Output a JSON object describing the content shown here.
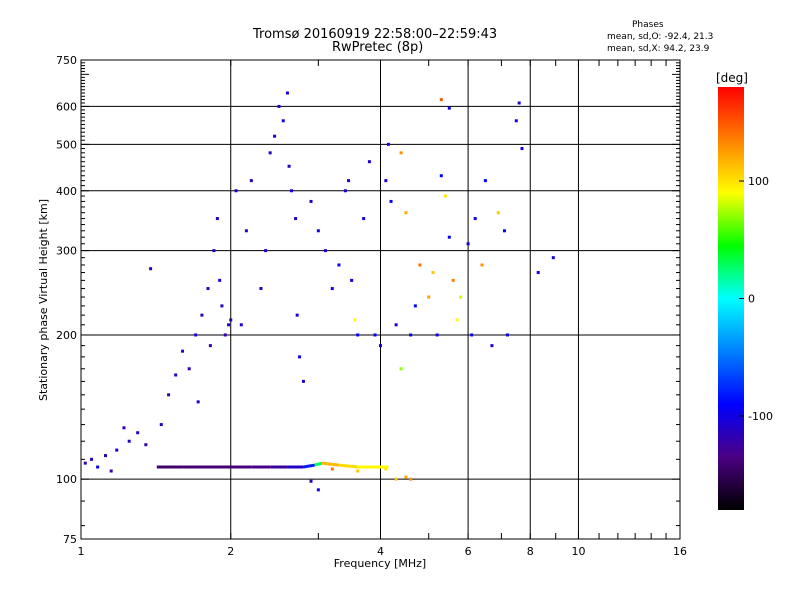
{
  "chart_data": {
    "type": "scatter",
    "title": "Tromsø 20160919 22:58:00–22:59:43",
    "subtitle": "RwPretec (8p)",
    "xlabel": "Frequency [MHz]",
    "ylabel": "Stationary phase Virtual Height [km]",
    "x_scale": "log",
    "y_scale": "log",
    "xlim": [
      1,
      16
    ],
    "ylim": [
      75,
      750
    ],
    "x_ticks": [
      1,
      2,
      4,
      6,
      8,
      10,
      16
    ],
    "y_ticks": [
      75,
      100,
      200,
      300,
      400,
      500,
      600,
      750
    ],
    "grid": true,
    "phase_stats": {
      "heading": "Phases",
      "o_mode": "mean, sd,O: -92.4, 21.3",
      "x_mode": "mean, sd,X:  94.2, 23.9"
    },
    "colorbar": {
      "unit": "[deg]",
      "range": [
        -180,
        180
      ],
      "ticks": [
        100,
        0,
        -100
      ],
      "colors": [
        "#000000",
        "#4b0082",
        "#0000ff",
        "#0080ff",
        "#00ffff",
        "#00ff00",
        "#ffff00",
        "#ff8000",
        "#ff0000"
      ]
    },
    "series": [
      {
        "points": [
          [
            1.02,
            108,
            -120
          ],
          [
            1.05,
            110,
            -110
          ],
          [
            1.08,
            106,
            -100
          ],
          [
            1.12,
            112,
            -115
          ],
          [
            1.15,
            104,
            -125
          ],
          [
            1.18,
            115,
            -105
          ],
          [
            1.22,
            128,
            -120
          ],
          [
            1.25,
            120,
            -110
          ],
          [
            1.3,
            125,
            -115
          ],
          [
            1.35,
            118,
            -120
          ],
          [
            1.38,
            275,
            -110
          ],
          [
            1.45,
            130,
            -115
          ],
          [
            1.5,
            150,
            -120
          ],
          [
            1.55,
            165,
            -110
          ],
          [
            1.6,
            185,
            -115
          ],
          [
            1.65,
            170,
            -120
          ],
          [
            1.7,
            200,
            -110
          ],
          [
            1.72,
            145,
            -105
          ],
          [
            1.75,
            220,
            -115
          ],
          [
            1.8,
            250,
            -110
          ],
          [
            1.82,
            190,
            -120
          ],
          [
            1.85,
            300,
            -115
          ],
          [
            1.88,
            350,
            -110
          ],
          [
            1.9,
            260,
            -105
          ],
          [
            1.92,
            230,
            -115
          ],
          [
            1.95,
            200,
            -120
          ],
          [
            1.98,
            210,
            -110
          ],
          [
            2.0,
            215,
            -115
          ],
          [
            2.05,
            400,
            -110
          ],
          [
            2.1,
            210,
            -105
          ],
          [
            2.15,
            330,
            -110
          ],
          [
            2.2,
            420,
            -115
          ],
          [
            2.3,
            250,
            -110
          ],
          [
            2.35,
            300,
            -105
          ],
          [
            2.4,
            480,
            -110
          ],
          [
            2.45,
            520,
            -105
          ],
          [
            2.5,
            600,
            -110
          ],
          [
            2.55,
            560,
            -100
          ],
          [
            2.6,
            640,
            -105
          ],
          [
            2.62,
            450,
            -110
          ],
          [
            2.65,
            400,
            -105
          ],
          [
            2.7,
            350,
            -110
          ],
          [
            2.72,
            220,
            -100
          ],
          [
            2.75,
            180,
            -95
          ],
          [
            2.8,
            160,
            -110
          ],
          [
            2.9,
            380,
            -105
          ],
          [
            3.0,
            330,
            -100
          ],
          [
            3.1,
            300,
            -110
          ],
          [
            3.2,
            250,
            -105
          ],
          [
            3.3,
            280,
            -100
          ],
          [
            3.4,
            400,
            -105
          ],
          [
            3.45,
            420,
            -110
          ],
          [
            3.5,
            260,
            -100
          ],
          [
            3.55,
            215,
            90
          ],
          [
            3.6,
            200,
            -90
          ],
          [
            3.7,
            350,
            -100
          ],
          [
            3.8,
            460,
            -105
          ],
          [
            3.9,
            200,
            -95
          ],
          [
            4.0,
            190,
            -100
          ],
          [
            4.1,
            420,
            -105
          ],
          [
            4.15,
            500,
            -100
          ],
          [
            4.2,
            380,
            -95
          ],
          [
            4.3,
            210,
            -105
          ],
          [
            4.4,
            480,
            130
          ],
          [
            4.5,
            360,
            120
          ],
          [
            4.6,
            200,
            -90
          ],
          [
            4.7,
            230,
            -95
          ],
          [
            4.8,
            280,
            140
          ],
          [
            5.0,
            240,
            125
          ],
          [
            5.1,
            270,
            110
          ],
          [
            5.2,
            200,
            -100
          ],
          [
            5.3,
            430,
            -90
          ],
          [
            5.4,
            390,
            100
          ],
          [
            5.5,
            320,
            -95
          ],
          [
            5.6,
            260,
            135
          ],
          [
            5.7,
            215,
            90
          ],
          [
            5.8,
            240,
            80
          ],
          [
            6.0,
            310,
            -100
          ],
          [
            6.1,
            200,
            -100
          ],
          [
            6.2,
            350,
            -95
          ],
          [
            6.4,
            280,
            130
          ],
          [
            6.5,
            420,
            -90
          ],
          [
            6.7,
            190,
            -105
          ],
          [
            6.9,
            360,
            110
          ],
          [
            7.1,
            330,
            -95
          ],
          [
            7.2,
            200,
            -100
          ],
          [
            7.5,
            560,
            -100
          ],
          [
            7.6,
            610,
            -105
          ],
          [
            7.7,
            490,
            -100
          ],
          [
            8.3,
            270,
            -100
          ],
          [
            8.9,
            290,
            -100
          ],
          [
            3.2,
            105,
            140
          ],
          [
            3.6,
            104,
            110
          ],
          [
            4.1,
            105,
            100
          ],
          [
            4.3,
            100,
            110
          ],
          [
            4.5,
            101,
            120
          ],
          [
            4.6,
            100,
            130
          ],
          [
            2.9,
            99,
            -110
          ],
          [
            3.0,
            95,
            -100
          ],
          [
            4.4,
            170,
            70
          ],
          [
            5.3,
            620,
            150
          ],
          [
            5.5,
            595,
            -100
          ]
        ]
      },
      {
        "trace": [
          [
            1.42,
            106,
            -145
          ],
          [
            1.6,
            106,
            -140
          ],
          [
            1.8,
            106,
            -140
          ],
          [
            2.0,
            106,
            -140
          ],
          [
            2.2,
            106,
            -135
          ],
          [
            2.4,
            106,
            -130
          ],
          [
            2.6,
            106,
            -120
          ],
          [
            2.8,
            106,
            -100
          ],
          [
            2.95,
            107,
            -60
          ],
          [
            3.05,
            108,
            120
          ],
          [
            3.3,
            107,
            110
          ],
          [
            3.6,
            106,
            95
          ],
          [
            3.9,
            106,
            90
          ],
          [
            4.15,
            106,
            95
          ]
        ]
      }
    ]
  }
}
